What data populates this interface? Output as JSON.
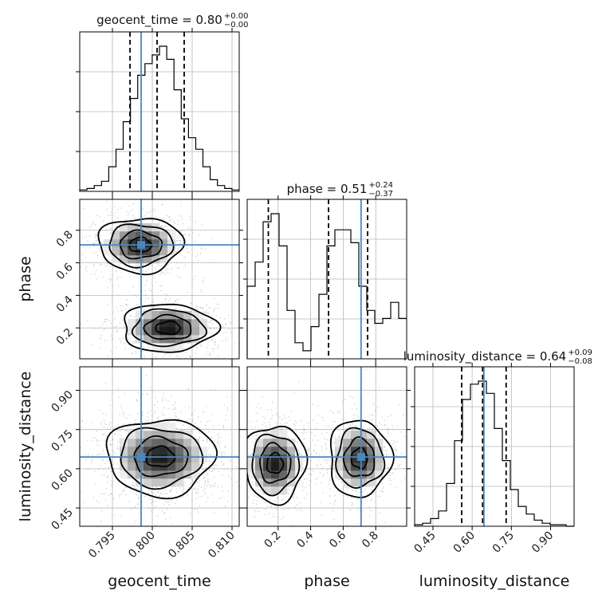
{
  "chart_data": {
    "type": "corner",
    "parameters": [
      "geocent_time",
      "phase",
      "luminosity_distance"
    ],
    "truths": {
      "geocent_time": 0.7986,
      "phase": 0.71,
      "luminosity_distance": 0.645
    },
    "titles": [
      {
        "param": "geocent_time",
        "name": "geocent_time",
        "median": "0.80",
        "plus": "+0.00",
        "minus": "−0.00"
      },
      {
        "param": "phase",
        "name": "phase",
        "median": "0.51",
        "plus": "+0.24",
        "minus": "−0.37"
      },
      {
        "param": "luminosity_distance",
        "name": "luminosity_distance",
        "median": "0.64",
        "plus": "+0.09",
        "minus": "−0.08"
      }
    ],
    "ranges": {
      "geocent_time": [
        0.7909,
        0.8109
      ],
      "phase": [
        0.01,
        0.99
      ],
      "luminosity_distance": [
        0.38,
        0.99
      ]
    },
    "ticks": {
      "geocent_time": {
        "values": [
          0.795,
          0.8,
          0.805,
          0.81
        ],
        "labels": [
          "0.795",
          "0.800",
          "0.805",
          "0.810"
        ]
      },
      "phase": {
        "values": [
          0.2,
          0.4,
          0.6,
          0.8
        ],
        "labels": [
          "0.2",
          "0.4",
          "0.6",
          "0.8"
        ]
      },
      "luminosity_distance": {
        "values": [
          0.45,
          0.6,
          0.75,
          0.9
        ],
        "labels": [
          "0.45",
          "0.60",
          "0.75",
          "0.90"
        ]
      }
    },
    "grid": true,
    "histograms": {
      "geocent_time": {
        "edges": [
          0.7909,
          0.8109
        ],
        "counts": [
          1,
          2,
          4,
          7,
          17,
          29,
          48,
          64,
          80,
          88,
          94,
          100,
          91,
          70,
          50,
          37,
          29,
          17,
          8,
          4,
          2,
          1
        ],
        "quantiles": [
          0.7972,
          0.8006,
          0.804
        ]
      },
      "phase": {
        "edges": [
          0.01,
          0.99
        ],
        "counts": [
          45,
          60,
          85,
          90,
          70,
          30,
          10,
          5,
          20,
          40,
          70,
          80,
          80,
          72,
          45,
          30,
          22,
          25,
          35,
          25
        ],
        "quantiles": [
          0.14,
          0.51,
          0.75
        ]
      },
      "luminosity_distance": {
        "edges": [
          0.38,
          0.99
        ],
        "counts": [
          1,
          2,
          5,
          10,
          28,
          56,
          83,
          93,
          95,
          87,
          64,
          43,
          24,
          13,
          8,
          4,
          2,
          1,
          1,
          0
        ],
        "quantiles": [
          0.56,
          0.64,
          0.73
        ]
      }
    },
    "density_peaks": {
      "phase_vs_geocent_time": [
        {
          "x": 0.7985,
          "y": 0.71,
          "sx": 0.0025,
          "sy": 0.08,
          "w": 1.0
        },
        {
          "x": 0.802,
          "y": 0.2,
          "sx": 0.0028,
          "sy": 0.07,
          "w": 1.05
        }
      ],
      "luminosity_distance_vs_geocent_time": [
        {
          "x": 0.801,
          "y": 0.645,
          "sx": 0.0032,
          "sy": 0.07,
          "w": 1.0
        }
      ],
      "luminosity_distance_vs_phase": [
        {
          "x": 0.18,
          "y": 0.62,
          "sx": 0.09,
          "sy": 0.07,
          "w": 1.0
        },
        {
          "x": 0.7,
          "y": 0.64,
          "sx": 0.09,
          "sy": 0.07,
          "w": 0.95
        }
      ]
    }
  }
}
